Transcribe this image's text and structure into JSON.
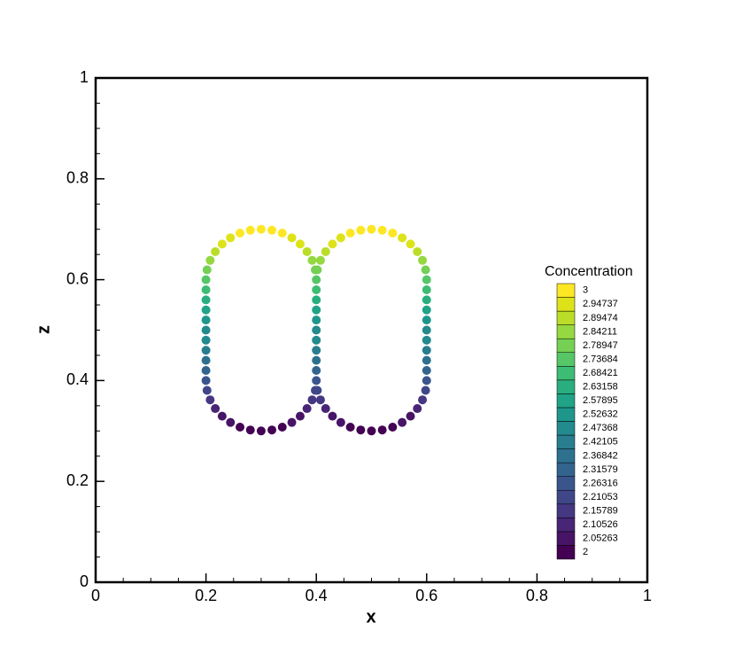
{
  "chart_data": {
    "type": "scatter",
    "xlabel": "x",
    "ylabel": "z",
    "xlim": [
      0,
      1
    ],
    "ylim": [
      0,
      1
    ],
    "xticks": [
      0,
      0.2,
      0.4,
      0.6,
      0.8,
      1
    ],
    "yticks": [
      0,
      0.2,
      0.4,
      0.6,
      0.8,
      1
    ],
    "xminorticks": [
      0.05,
      0.1,
      0.15,
      0.25,
      0.3,
      0.35,
      0.45,
      0.5,
      0.55,
      0.65,
      0.7,
      0.75,
      0.85,
      0.9,
      0.95
    ],
    "yminorticks": [
      0.05,
      0.1,
      0.15,
      0.25,
      0.3,
      0.35,
      0.45,
      0.5,
      0.55,
      0.65,
      0.7,
      0.75,
      0.85,
      0.9,
      0.95
    ],
    "colorbar_title": "Concentration",
    "colorbar_levels": [
      2,
      2.05263,
      2.10526,
      2.15789,
      2.21053,
      2.26316,
      2.31579,
      2.36842,
      2.42105,
      2.47368,
      2.52632,
      2.57895,
      2.63158,
      2.68421,
      2.73684,
      2.78947,
      2.84211,
      2.89474,
      2.94737,
      3
    ],
    "colorbar_colors": [
      "#440154",
      "#481467",
      "#482576",
      "#453781",
      "#3f4788",
      "#39558c",
      "#32648e",
      "#2d718e",
      "#287d8e",
      "#238a8d",
      "#1f968b",
      "#20a386",
      "#29af7f",
      "#3dbc74",
      "#56c667",
      "#75d054",
      "#95d840",
      "#bade28",
      "#dde318",
      "#fde725"
    ],
    "x": [
      0.2,
      0.2,
      0.2,
      0.2,
      0.2,
      0.2,
      0.2,
      0.2,
      0.2,
      0.2,
      0.2,
      0.2019,
      0.2076,
      0.2169,
      0.2293,
      0.2444,
      0.2617,
      0.2805,
      0.3,
      0.3195,
      0.3383,
      0.3556,
      0.3707,
      0.3831,
      0.3924,
      0.3981,
      0.4,
      0.4,
      0.4,
      0.4,
      0.4,
      0.4,
      0.4,
      0.4,
      0.4,
      0.4,
      0.4,
      0.3981,
      0.3924,
      0.3831,
      0.3707,
      0.3556,
      0.3383,
      0.3195,
      0.3,
      0.2805,
      0.2617,
      0.2444,
      0.2293,
      0.2169,
      0.2076,
      0.2019,
      0.4019,
      0.4076,
      0.4169,
      0.4293,
      0.4444,
      0.4617,
      0.4805,
      0.5,
      0.5195,
      0.5383,
      0.5556,
      0.5707,
      0.5831,
      0.5924,
      0.5981,
      0.6,
      0.6,
      0.6,
      0.6,
      0.6,
      0.6,
      0.6,
      0.6,
      0.6,
      0.6,
      0.6,
      0.5981,
      0.5924,
      0.5831,
      0.5707,
      0.5556,
      0.5383,
      0.5195,
      0.5,
      0.4805,
      0.4617,
      0.4444,
      0.4293,
      0.4169,
      0.4076,
      0.4019
    ],
    "y": [
      0.4,
      0.42,
      0.44,
      0.46,
      0.48,
      0.5,
      0.52,
      0.54,
      0.56,
      0.58,
      0.6,
      0.6195,
      0.6383,
      0.6556,
      0.6707,
      0.6831,
      0.6924,
      0.6981,
      0.7,
      0.6981,
      0.6924,
      0.6831,
      0.6707,
      0.6556,
      0.6383,
      0.6195,
      0.6,
      0.58,
      0.56,
      0.54,
      0.52,
      0.5,
      0.48,
      0.46,
      0.44,
      0.42,
      0.4,
      0.3805,
      0.3617,
      0.3444,
      0.3293,
      0.3169,
      0.3076,
      0.3019,
      0.3,
      0.3019,
      0.3076,
      0.3169,
      0.3293,
      0.3444,
      0.3617,
      0.3805,
      0.6195,
      0.6383,
      0.6556,
      0.6707,
      0.6831,
      0.6924,
      0.6981,
      0.7,
      0.6981,
      0.6924,
      0.6831,
      0.6707,
      0.6556,
      0.6383,
      0.6195,
      0.6,
      0.58,
      0.56,
      0.54,
      0.52,
      0.5,
      0.48,
      0.46,
      0.44,
      0.42,
      0.4,
      0.3805,
      0.3617,
      0.3444,
      0.3293,
      0.3169,
      0.3076,
      0.3019,
      0.3,
      0.3019,
      0.3076,
      0.3169,
      0.3293,
      0.3444,
      0.3617,
      0.3805
    ],
    "values": [
      2.25,
      2.3,
      2.35,
      2.4,
      2.45,
      2.5,
      2.55,
      2.6,
      2.65,
      2.7,
      2.75,
      2.799,
      2.846,
      2.889,
      2.927,
      2.958,
      2.981,
      2.995,
      3,
      2.995,
      2.981,
      2.958,
      2.927,
      2.889,
      2.846,
      2.799,
      2.75,
      2.7,
      2.65,
      2.6,
      2.55,
      2.5,
      2.45,
      2.4,
      2.35,
      2.3,
      2.25,
      2.201,
      2.154,
      2.111,
      2.073,
      2.042,
      2.019,
      2.005,
      2,
      2.005,
      2.019,
      2.042,
      2.073,
      2.111,
      2.154,
      2.201,
      2.799,
      2.846,
      2.889,
      2.927,
      2.958,
      2.981,
      2.995,
      3,
      2.995,
      2.981,
      2.958,
      2.927,
      2.889,
      2.846,
      2.799,
      2.75,
      2.7,
      2.65,
      2.6,
      2.55,
      2.5,
      2.45,
      2.4,
      2.35,
      2.3,
      2.25,
      2.201,
      2.154,
      2.111,
      2.073,
      2.042,
      2.019,
      2.005,
      2,
      2.005,
      2.019,
      2.042,
      2.073,
      2.111,
      2.154,
      2.201
    ]
  }
}
